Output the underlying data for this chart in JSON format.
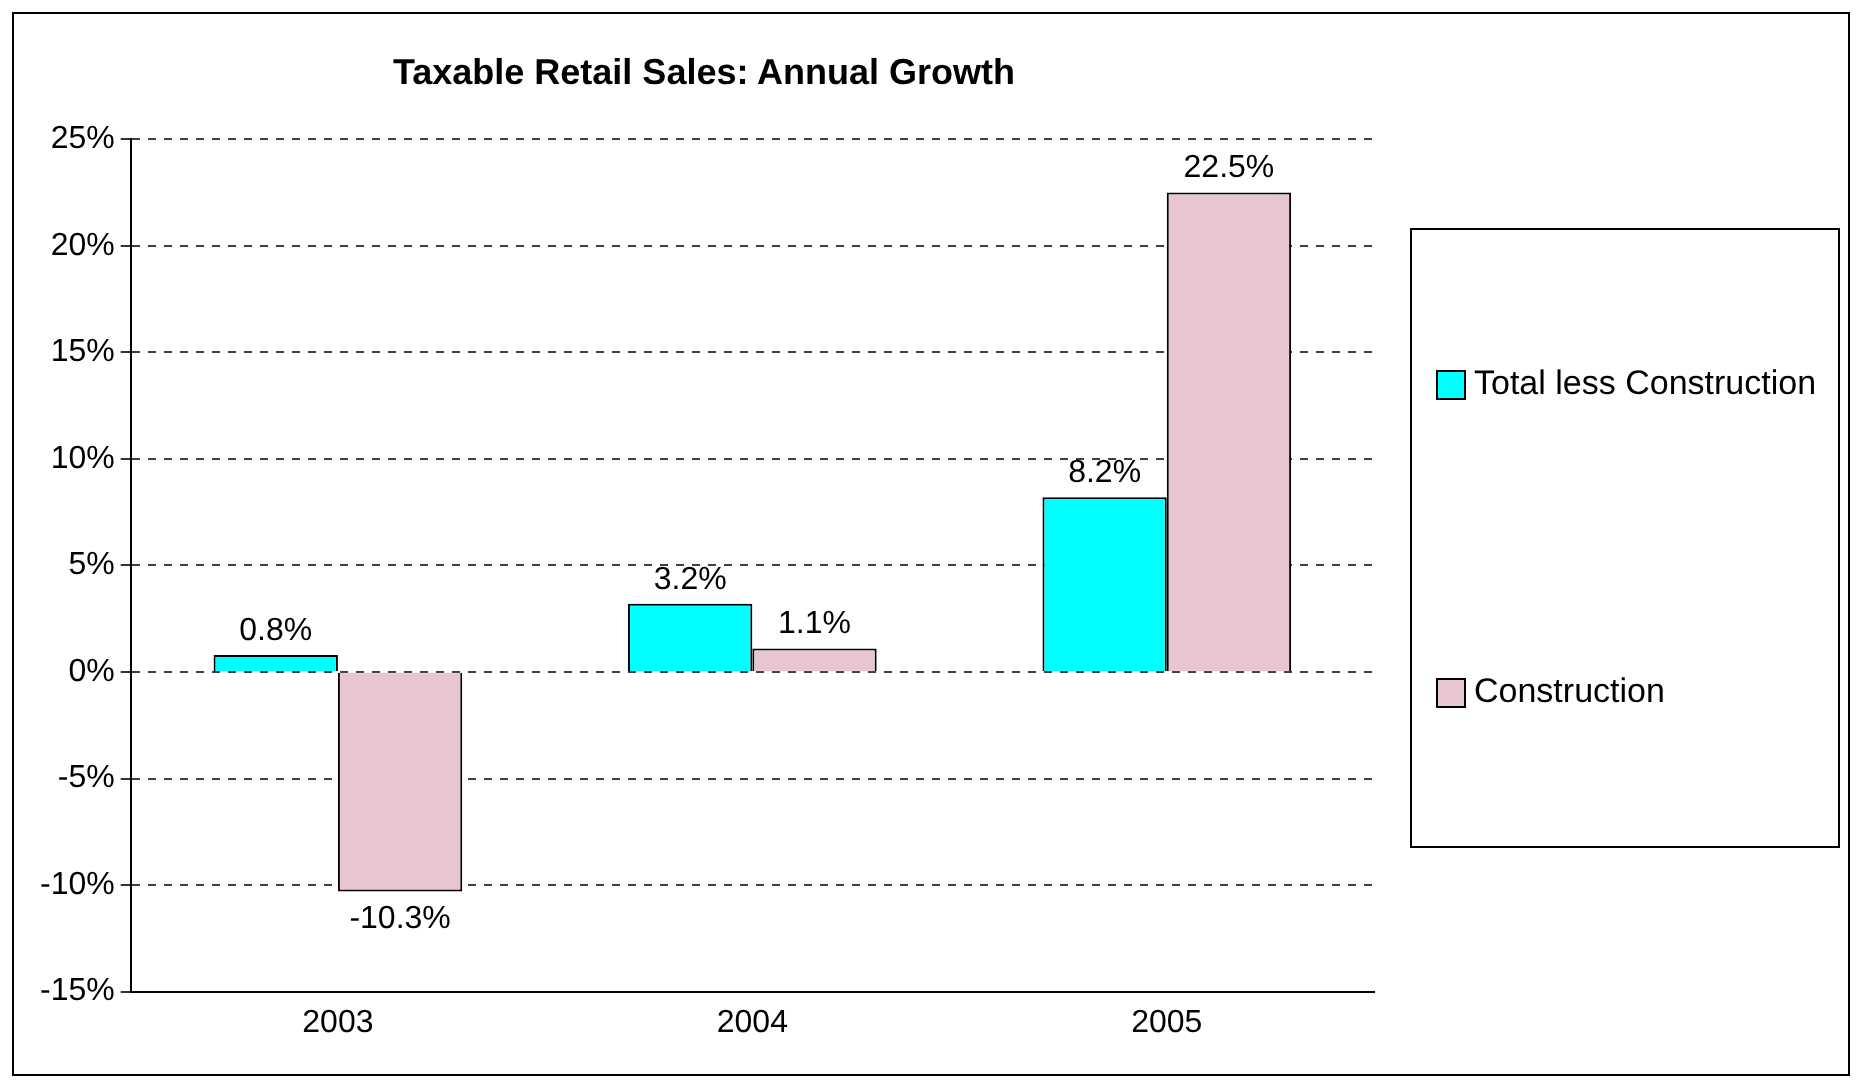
{
  "chart_data": {
    "type": "bar",
    "title": "Taxable Retail Sales: Annual Growth",
    "categories": [
      "2003",
      "2004",
      "2005"
    ],
    "series": [
      {
        "name": "Total less Construction",
        "color": "#00ffff",
        "values": [
          0.8,
          3.2,
          8.2
        ],
        "value_labels": [
          "0.8%",
          "3.2%",
          "8.2%"
        ]
      },
      {
        "name": "Construction",
        "color": "#e8c6cf",
        "values": [
          -10.3,
          1.1,
          22.5
        ],
        "value_labels": [
          "-10.3%",
          "1.1%",
          "22.5%"
        ]
      }
    ],
    "ylim": [
      -15,
      25
    ],
    "yticks": [
      {
        "value": -15,
        "label": "-15%"
      },
      {
        "value": -10,
        "label": "-10%"
      },
      {
        "value": -5,
        "label": "-5%"
      },
      {
        "value": 0,
        "label": "0%"
      },
      {
        "value": 5,
        "label": "5%"
      },
      {
        "value": 10,
        "label": "10%"
      },
      {
        "value": 15,
        "label": "15%"
      },
      {
        "value": 20,
        "label": "20%"
      },
      {
        "value": 25,
        "label": "25%"
      }
    ],
    "grid": "y",
    "legend": "right"
  }
}
